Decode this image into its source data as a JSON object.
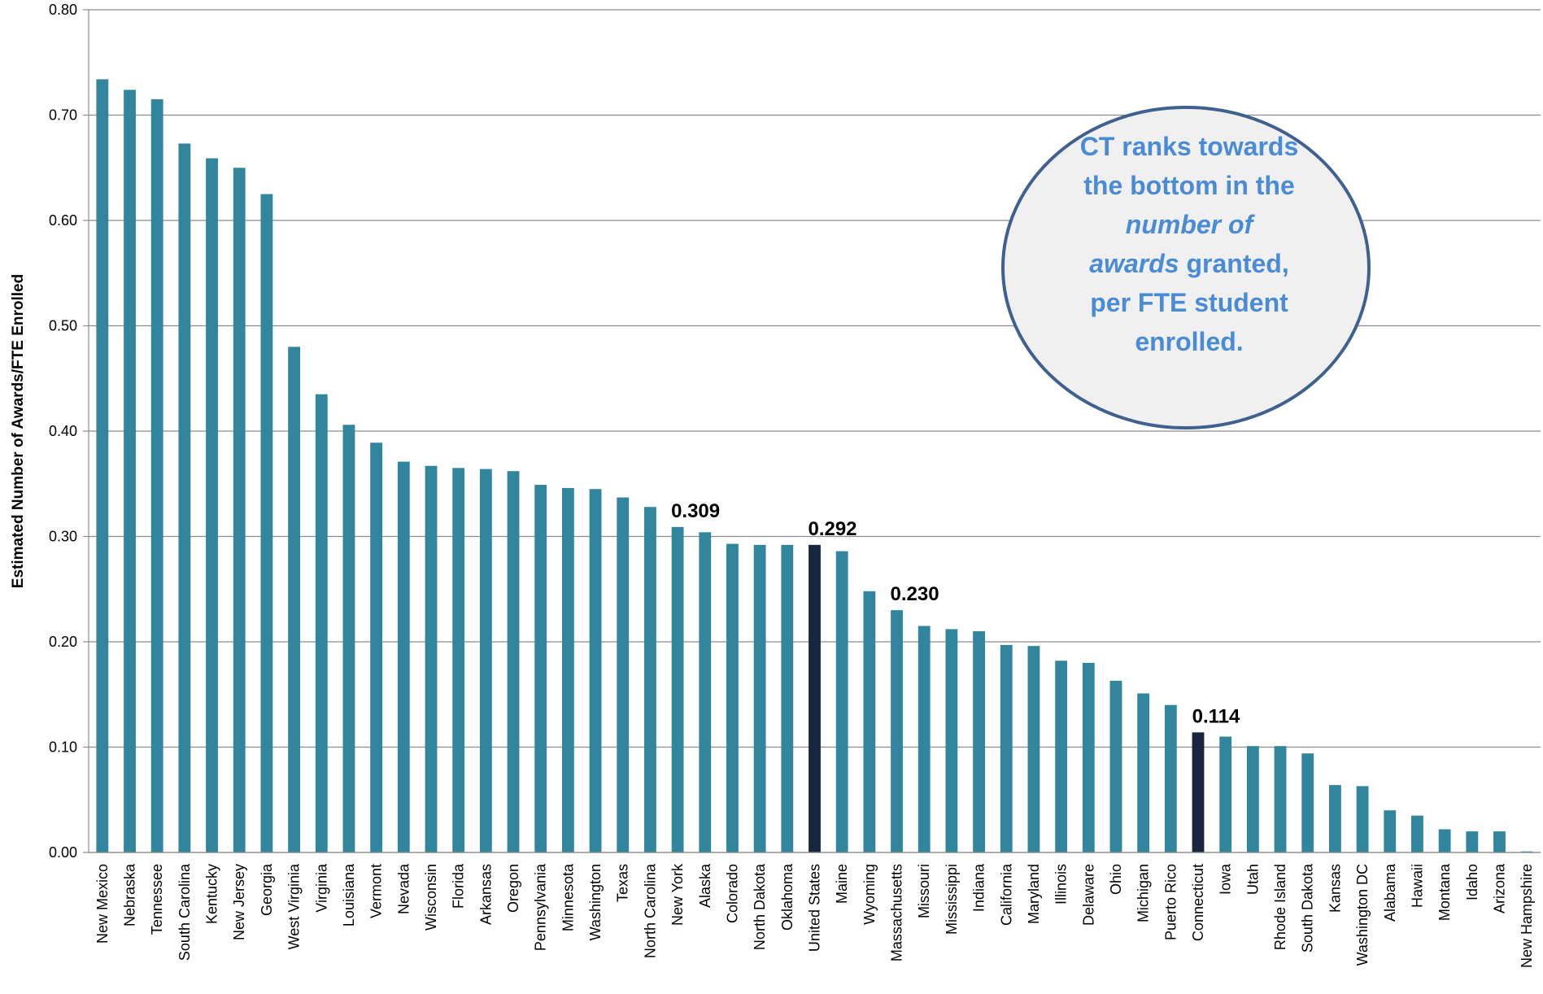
{
  "chart_data": {
    "type": "bar",
    "y_label": "Estimated Number of Awards/FTE Enrolled",
    "categories": [
      "New Mexico",
      "Nebraska",
      "Tennessee",
      "South Carolina",
      "Kentucky",
      "New Jersey",
      "Georgia",
      "West Virginia",
      "Virginia",
      "Louisiana",
      "Vermont",
      "Nevada",
      "Wisconsin",
      "Florida",
      "Arkansas",
      "Oregon",
      "Pennsylvania",
      "Minnesota",
      "Washington",
      "Texas",
      "North Carolina",
      "New York",
      "Alaska",
      "Colorado",
      "North Dakota",
      "Oklahoma",
      "United States",
      "Maine",
      "Wyoming",
      "Massachusetts",
      "Missouri",
      "Mississippi",
      "Indiana",
      "California",
      "Maryland",
      "Illinois",
      "Delaware",
      "Ohio",
      "Michigan",
      "Puerto Rico",
      "Connecticut",
      "Iowa",
      "Utah",
      "Rhode Island",
      "South Dakota",
      "Kansas",
      "Washington DC",
      "Alabama",
      "Hawaii",
      "Montana",
      "Idaho",
      "Arizona",
      "New Hampshire"
    ],
    "values": [
      0.734,
      0.724,
      0.715,
      0.673,
      0.659,
      0.65,
      0.625,
      0.48,
      0.435,
      0.406,
      0.389,
      0.371,
      0.367,
      0.365,
      0.364,
      0.362,
      0.349,
      0.346,
      0.345,
      0.337,
      0.328,
      0.309,
      0.304,
      0.293,
      0.292,
      0.292,
      0.292,
      0.286,
      0.248,
      0.23,
      0.215,
      0.212,
      0.21,
      0.197,
      0.196,
      0.182,
      0.18,
      0.163,
      0.151,
      0.14,
      0.114,
      0.11,
      0.101,
      0.101,
      0.094,
      0.064,
      0.063,
      0.04,
      0.035,
      0.022,
      0.02,
      0.02,
      0.001
    ],
    "value_labels": [
      null,
      null,
      null,
      null,
      null,
      null,
      null,
      null,
      null,
      null,
      null,
      null,
      null,
      null,
      null,
      null,
      null,
      null,
      null,
      null,
      null,
      "0.309",
      null,
      null,
      null,
      null,
      "0.292",
      null,
      null,
      "0.230",
      null,
      null,
      null,
      null,
      null,
      null,
      null,
      null,
      null,
      null,
      "0.114",
      null,
      null,
      null,
      null,
      null,
      null,
      null,
      null,
      null,
      null,
      null,
      null
    ],
    "colors": [
      "#31859c",
      "#31859c",
      "#31859c",
      "#31859c",
      "#31859c",
      "#31859c",
      "#31859c",
      "#31859c",
      "#31859c",
      "#31859c",
      "#31859c",
      "#31859c",
      "#31859c",
      "#31859c",
      "#31859c",
      "#31859c",
      "#31859c",
      "#31859c",
      "#31859c",
      "#31859c",
      "#31859c",
      "#31859c",
      "#31859c",
      "#31859c",
      "#31859c",
      "#31859c",
      "#17263d",
      "#31859c",
      "#31859c",
      "#31859c",
      "#31859c",
      "#31859c",
      "#31859c",
      "#31859c",
      "#31859c",
      "#31859c",
      "#31859c",
      "#31859c",
      "#31859c",
      "#31859c",
      "#17263d",
      "#31859c",
      "#31859c",
      "#31859c",
      "#31859c",
      "#31859c",
      "#31859c",
      "#31859c",
      "#31859c",
      "#31859c",
      "#31859c",
      "#31859c",
      "#31859c"
    ],
    "ylim": [
      0,
      0.8
    ],
    "yticks": [
      {
        "value": 0,
        "label": "0.00"
      },
      {
        "value": 0.1,
        "label": "0.10"
      },
      {
        "value": 0.2,
        "label": "0.20"
      },
      {
        "value": 0.3,
        "label": "0.30"
      },
      {
        "value": 0.4,
        "label": "0.40"
      },
      {
        "value": 0.5,
        "label": "0.50"
      },
      {
        "value": 0.6,
        "label": "0.60"
      },
      {
        "value": 0.7,
        "label": "0.70"
      },
      {
        "value": 0.8,
        "label": "0.80"
      }
    ],
    "grid": true,
    "annotation": {
      "lines": [
        [
          {
            "text": "CT ranks towards",
            "italic": false
          }
        ],
        [
          {
            "text": "the bottom in the",
            "italic": false
          }
        ],
        [
          {
            "text": "number of",
            "italic": true
          }
        ],
        [
          {
            "text": "awards",
            "italic": true
          },
          {
            "text": " granted,",
            "italic": false
          }
        ],
        [
          {
            "text": "per FTE student",
            "italic": false
          }
        ],
        [
          {
            "text": "enrolled.",
            "italic": false
          }
        ]
      ]
    }
  }
}
